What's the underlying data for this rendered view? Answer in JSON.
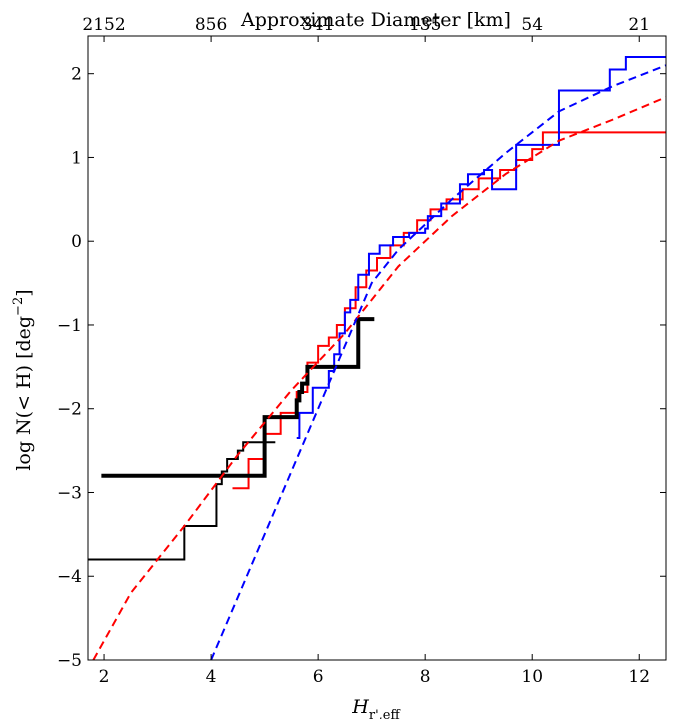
{
  "chart_data": {
    "type": "line",
    "title": "",
    "xlabel_parts": [
      "H",
      "r',eff"
    ],
    "ylabel_parts": [
      "log N(< H) [deg",
      "−2",
      "]"
    ],
    "top_axis_label": "Approximate Diameter [km]",
    "xlim": [
      1.7,
      12.5
    ],
    "ylim": [
      -5,
      2.45
    ],
    "x_ticks": [
      2,
      4,
      6,
      8,
      10,
      12
    ],
    "x_tick_labels": [
      "2",
      "4",
      "6",
      "8",
      "10",
      "12"
    ],
    "y_ticks": [
      -5,
      -4,
      -3,
      -2,
      -1,
      0,
      1,
      2
    ],
    "y_tick_labels": [
      "−5",
      "−4",
      "−3",
      "−2",
      "−1",
      "0",
      "1",
      "2"
    ],
    "top_ticks": [
      2.0,
      4.0,
      6.0,
      8.0,
      10.0,
      12.0
    ],
    "top_tick_labels": [
      "2152",
      "856",
      "341",
      "135",
      "54",
      "21"
    ],
    "grid": false,
    "series": [
      {
        "kind": "step",
        "color": "#ff0000",
        "width": 2,
        "points": [
          [
            4.4,
            -2.95
          ],
          [
            4.7,
            -2.6
          ],
          [
            5.0,
            -2.3
          ],
          [
            5.3,
            -2.05
          ],
          [
            5.6,
            -1.8
          ],
          [
            5.8,
            -1.45
          ],
          [
            6.0,
            -1.25
          ],
          [
            6.2,
            -1.15
          ],
          [
            6.35,
            -1.0
          ],
          [
            6.5,
            -0.8
          ],
          [
            6.7,
            -0.55
          ],
          [
            6.9,
            -0.35
          ],
          [
            7.1,
            -0.2
          ],
          [
            7.35,
            -0.05
          ],
          [
            7.6,
            0.1
          ],
          [
            7.85,
            0.25
          ],
          [
            8.1,
            0.38
          ],
          [
            8.4,
            0.5
          ],
          [
            8.7,
            0.62
          ],
          [
            9.0,
            0.75
          ],
          [
            9.4,
            0.85
          ],
          [
            9.7,
            0.97
          ],
          [
            10.0,
            1.1
          ],
          [
            10.2,
            1.3
          ],
          [
            12.5,
            1.3
          ]
        ]
      },
      {
        "kind": "step",
        "color": "#0000ff",
        "width": 2,
        "points": [
          [
            5.6,
            -2.35
          ],
          [
            5.65,
            -2.05
          ],
          [
            5.9,
            -1.75
          ],
          [
            6.2,
            -1.55
          ],
          [
            6.3,
            -1.35
          ],
          [
            6.4,
            -1.1
          ],
          [
            6.5,
            -0.85
          ],
          [
            6.6,
            -0.7
          ],
          [
            6.75,
            -0.4
          ],
          [
            6.95,
            -0.15
          ],
          [
            7.15,
            -0.05
          ],
          [
            7.4,
            0.05
          ],
          [
            7.7,
            0.1
          ],
          [
            8.0,
            0.15
          ],
          [
            8.05,
            0.3
          ],
          [
            8.3,
            0.45
          ],
          [
            8.65,
            0.68
          ],
          [
            8.8,
            0.8
          ],
          [
            9.1,
            0.85
          ],
          [
            9.25,
            0.62
          ],
          [
            9.7,
            1.15
          ],
          [
            10.1,
            1.15
          ],
          [
            10.5,
            1.8
          ],
          [
            11.45,
            2.05
          ],
          [
            11.75,
            2.2
          ],
          [
            12.5,
            2.2
          ]
        ]
      },
      {
        "kind": "step",
        "color": "#000000",
        "width": 2,
        "points": [
          [
            1.7,
            -3.8
          ],
          [
            3.5,
            -3.4
          ],
          [
            4.1,
            -2.9
          ],
          [
            4.2,
            -2.75
          ],
          [
            4.3,
            -2.6
          ],
          [
            4.5,
            -2.5
          ],
          [
            4.6,
            -2.4
          ],
          [
            5.2,
            -2.4
          ]
        ]
      },
      {
        "kind": "step",
        "color": "#000000",
        "width": 4,
        "points": [
          [
            1.95,
            -2.8
          ],
          [
            5.0,
            -2.1
          ],
          [
            5.6,
            -1.9
          ],
          [
            5.65,
            -1.8
          ],
          [
            5.7,
            -1.7
          ],
          [
            5.8,
            -1.5
          ],
          [
            6.75,
            -0.93
          ],
          [
            7.05,
            -0.93
          ]
        ]
      },
      {
        "kind": "dashed",
        "color": "#ff0000",
        "width": 2,
        "points": [
          [
            1.8,
            -5.0
          ],
          [
            2.5,
            -4.2
          ],
          [
            3.5,
            -3.4
          ],
          [
            4.5,
            -2.55
          ],
          [
            5.5,
            -1.78
          ],
          [
            6.5,
            -1.1
          ],
          [
            7.5,
            -0.3
          ],
          [
            8.5,
            0.3
          ],
          [
            9.5,
            0.8
          ],
          [
            10.5,
            1.2
          ],
          [
            11.5,
            1.45
          ],
          [
            12.5,
            1.72
          ]
        ]
      },
      {
        "kind": "dashed",
        "color": "#0000ff",
        "width": 2,
        "points": [
          [
            4.0,
            -5.0
          ],
          [
            5.0,
            -3.5
          ],
          [
            6.0,
            -2.0
          ],
          [
            6.6,
            -1.1
          ],
          [
            7.0,
            -0.5
          ],
          [
            7.5,
            -0.1
          ],
          [
            8.5,
            0.5
          ],
          [
            9.5,
            1.05
          ],
          [
            10.5,
            1.55
          ],
          [
            11.5,
            1.85
          ],
          [
            12.5,
            2.1
          ]
        ]
      }
    ]
  }
}
